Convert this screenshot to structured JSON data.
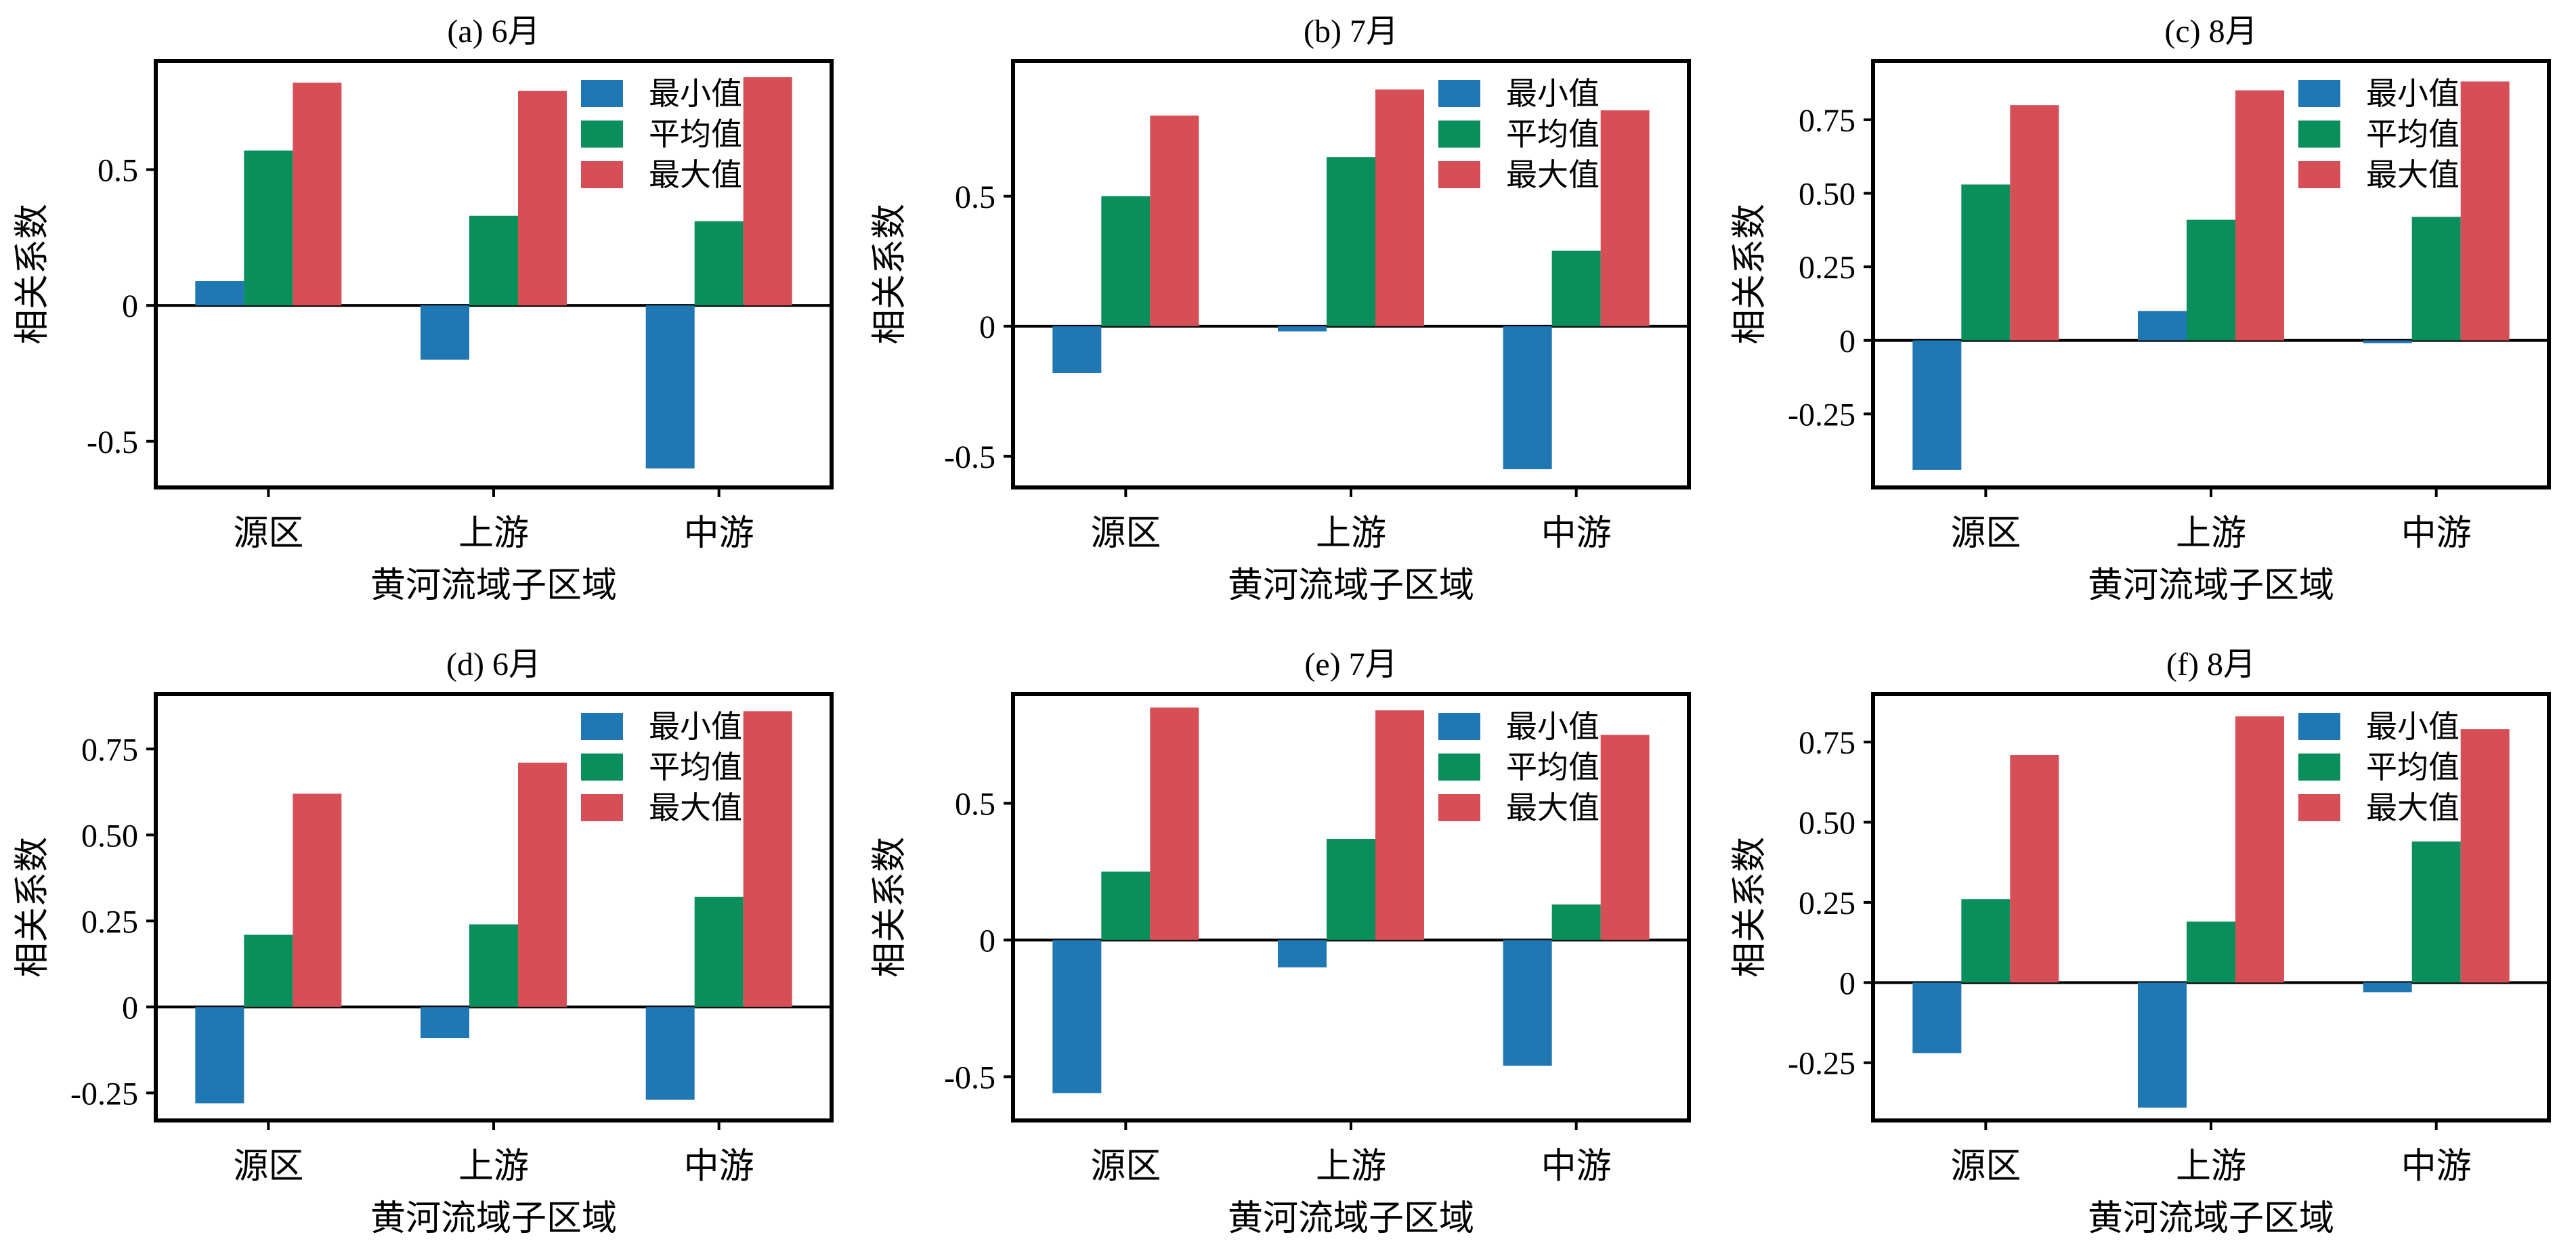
{
  "colors": {
    "min": "#1f77b4",
    "mean": "#0a8f5c",
    "max": "#d64f57",
    "axis": "#000000",
    "background": "#ffffff"
  },
  "chart_data": [
    {
      "type": "bar",
      "panel": "a",
      "title": "(a) 6月",
      "xlabel": "黄河流域子区域",
      "ylabel": "相关系数",
      "categories": [
        "源区",
        "上游",
        "中游"
      ],
      "ylim": [
        -0.67,
        0.9
      ],
      "yticks": [
        -0.5,
        0,
        0.5
      ],
      "ytick_labels": [
        "-0.5",
        "0",
        "0.5"
      ],
      "series": [
        {
          "name": "最小值",
          "values": [
            0.09,
            -0.2,
            -0.6
          ]
        },
        {
          "name": "平均值",
          "values": [
            0.57,
            0.33,
            0.31
          ]
        },
        {
          "name": "最大值",
          "values": [
            0.82,
            0.79,
            0.84
          ]
        }
      ],
      "legend": "top-right"
    },
    {
      "type": "bar",
      "panel": "b",
      "title": "(b) 7月",
      "xlabel": "黄河流域子区域",
      "ylabel": "相关系数",
      "categories": [
        "源区",
        "上游",
        "中游"
      ],
      "ylim": [
        -0.62,
        1.02
      ],
      "yticks": [
        -0.5,
        0,
        0.5
      ],
      "ytick_labels": [
        "-0.5",
        "0",
        "0.5"
      ],
      "series": [
        {
          "name": "最小值",
          "values": [
            -0.18,
            -0.02,
            -0.55
          ]
        },
        {
          "name": "平均值",
          "values": [
            0.5,
            0.65,
            0.29
          ]
        },
        {
          "name": "最大值",
          "values": [
            0.81,
            0.91,
            0.83
          ]
        }
      ],
      "legend": "top-right"
    },
    {
      "type": "bar",
      "panel": "c",
      "title": "(c) 8月",
      "xlabel": "黄河流域子区域",
      "ylabel": "相关系数",
      "categories": [
        "源区",
        "上游",
        "中游"
      ],
      "ylim": [
        -0.5,
        0.95
      ],
      "yticks": [
        -0.25,
        0,
        0.25,
        0.5,
        0.75
      ],
      "ytick_labels": [
        "-0.25",
        "0",
        "0.25",
        "0.50",
        "0.75"
      ],
      "series": [
        {
          "name": "最小值",
          "values": [
            -0.44,
            0.1,
            -0.01
          ]
        },
        {
          "name": "平均值",
          "values": [
            0.53,
            0.41,
            0.42
          ]
        },
        {
          "name": "最大值",
          "values": [
            0.8,
            0.85,
            0.88
          ]
        }
      ],
      "legend": "top-right"
    },
    {
      "type": "bar",
      "panel": "d",
      "title": "(d) 6月",
      "xlabel": "黄河流域子区域",
      "ylabel": "相关系数",
      "categories": [
        "源区",
        "上游",
        "中游"
      ],
      "ylim": [
        -0.33,
        0.91
      ],
      "yticks": [
        -0.25,
        0,
        0.25,
        0.5,
        0.75
      ],
      "ytick_labels": [
        "-0.25",
        "0",
        "0.25",
        "0.50",
        "0.75"
      ],
      "series": [
        {
          "name": "最小值",
          "values": [
            -0.28,
            -0.09,
            -0.27
          ]
        },
        {
          "name": "平均值",
          "values": [
            0.21,
            0.24,
            0.32
          ]
        },
        {
          "name": "最大值",
          "values": [
            0.62,
            0.71,
            0.86
          ]
        }
      ],
      "legend": "top-right"
    },
    {
      "type": "bar",
      "panel": "e",
      "title": "(e) 7月",
      "xlabel": "黄河流域子区域",
      "ylabel": "相关系数",
      "categories": [
        "源区",
        "上游",
        "中游"
      ],
      "ylim": [
        -0.66,
        0.9
      ],
      "yticks": [
        -0.5,
        0,
        0.5
      ],
      "ytick_labels": [
        "-0.5",
        "0",
        "0.5"
      ],
      "series": [
        {
          "name": "最小值",
          "values": [
            -0.56,
            -0.1,
            -0.46
          ]
        },
        {
          "name": "平均值",
          "values": [
            0.25,
            0.37,
            0.13
          ]
        },
        {
          "name": "最大值",
          "values": [
            0.85,
            0.84,
            0.75
          ]
        }
      ],
      "legend": "top-right"
    },
    {
      "type": "bar",
      "panel": "f",
      "title": "(f) 8月",
      "xlabel": "黄河流域子区域",
      "ylabel": "相关系数",
      "categories": [
        "源区",
        "上游",
        "中游"
      ],
      "ylim": [
        -0.43,
        0.9
      ],
      "yticks": [
        -0.25,
        0,
        0.25,
        0.5,
        0.75
      ],
      "ytick_labels": [
        "-0.25",
        "0",
        "0.25",
        "0.50",
        "0.75"
      ],
      "series": [
        {
          "name": "最小值",
          "values": [
            -0.22,
            -0.39,
            -0.03
          ]
        },
        {
          "name": "平均值",
          "values": [
            0.26,
            0.19,
            0.44
          ]
        },
        {
          "name": "最大值",
          "values": [
            0.71,
            0.83,
            0.79
          ]
        }
      ],
      "legend": "top-right"
    }
  ]
}
